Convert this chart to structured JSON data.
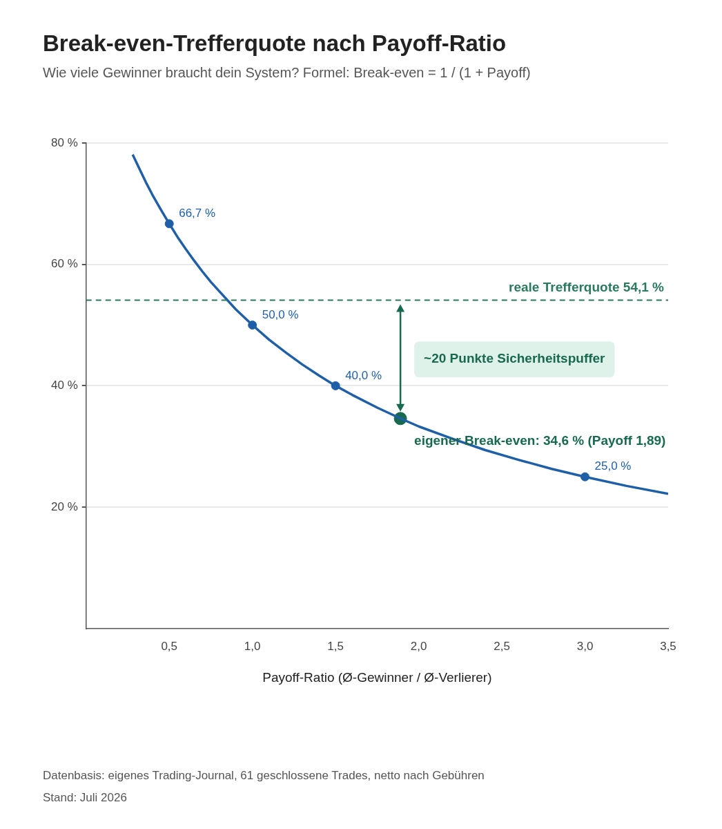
{
  "chart_data": {
    "type": "line",
    "title": "Break-even-Trefferquote nach Payoff-Ratio",
    "subtitle": "Wie viele Gewinner braucht dein System? Formel: Break-even = 1 / (1 + Payoff)",
    "xlabel": "Payoff-Ratio (Ø-Gewinner / Ø-Verlierer)",
    "xlim": [
      0,
      3.5
    ],
    "xticks": [
      {
        "value": 0.5,
        "label": "0,5"
      },
      {
        "value": 1,
        "label": "1,0"
      },
      {
        "value": 1.5,
        "label": "1,5"
      },
      {
        "value": 2,
        "label": "2,0"
      },
      {
        "value": 2.5,
        "label": "2,5"
      },
      {
        "value": 3,
        "label": "3,0"
      },
      {
        "value": 3.5,
        "label": "3,5"
      }
    ],
    "ylim": [
      0,
      80
    ],
    "yticks": [
      {
        "value": 20,
        "label": "20 %"
      },
      {
        "value": 40,
        "label": "40 %"
      },
      {
        "value": 60,
        "label": "60 %"
      },
      {
        "value": 80,
        "label": "80 %"
      }
    ],
    "grid": "y",
    "legend": false,
    "marker": "none",
    "series": [
      {
        "type": "line",
        "color": "#1f5fa8",
        "x": [
          0.28,
          0.32,
          0.36,
          0.4,
          0.45,
          0.5,
          0.55,
          0.6,
          0.65,
          0.7,
          0.75,
          0.8,
          0.9,
          1,
          1.1,
          1.2,
          1.3,
          1.4,
          1.5,
          1.6,
          1.75,
          1.9,
          2,
          2.2,
          2.4,
          2.6,
          2.8,
          3,
          3.25,
          3.5
        ],
        "values": [
          78.1,
          75.8,
          73.5,
          71.4,
          69,
          66.7,
          64.5,
          62.5,
          60.6,
          58.8,
          57.1,
          55.6,
          52.6,
          50,
          47.6,
          45.5,
          43.5,
          41.7,
          40,
          38.5,
          36.4,
          34.5,
          33.3,
          31.3,
          29.4,
          27.8,
          26.3,
          25,
          23.5,
          22.2
        ]
      },
      {
        "type": "scatter",
        "marker": "circle",
        "color": "#1f5fa8",
        "x": [
          0.5,
          1,
          1.5,
          3
        ],
        "values": [
          66.7,
          50,
          40,
          25
        ],
        "value_labels": [
          "66,7 %",
          "50,0 %",
          "40,0 %",
          "25,0 %"
        ]
      },
      {
        "type": "scatter",
        "marker": "circle",
        "color": "#17694f",
        "x": [
          1.89
        ],
        "values": [
          34.6
        ]
      }
    ],
    "ref_lines": [
      {
        "axis": "y",
        "value": 54.1,
        "label": "reale Trefferquote 54,1 %",
        "color": "#2a7a5e",
        "line_style": "dashed"
      }
    ],
    "annotations": [
      "~20 Punkte Sicherheitspuffer",
      {
        "text": "eigener Break-even: 34,6 % (Payoff 1,89)",
        "x": 1.89,
        "y": 34.6
      },
      "Datenbasis: eigenes Trading-Journal, 61 geschlossene Trades, netto nach Gebühren",
      "Stand: Juli 2026"
    ]
  }
}
